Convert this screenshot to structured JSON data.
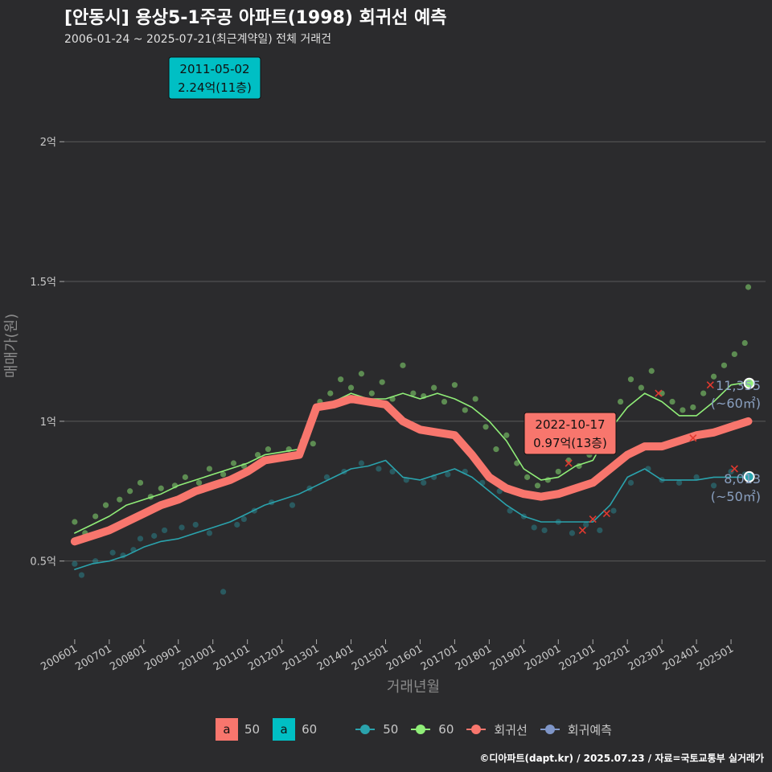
{
  "header": {
    "title": "[안동시] 용상5-1주공 아파트(1998) 회귀선 예측",
    "subtitle": "2006-01-24 ~ 2025-07-21(최근계약일) 전체 거래건"
  },
  "footer": "©디아파트(dapt.kr) / 2025.07.23 / 자료=국토교통부 실거래가",
  "colors": {
    "background": "#2b2b2d",
    "s50": "#2aa3ad",
    "s60": "#90ee78",
    "regression": "#f8766d",
    "prediction": "#7f96c8",
    "label_50": "#f8766d",
    "label_60": "#00bfc4",
    "grid": "#5a5a5a"
  },
  "chart_data": {
    "type": "scatter",
    "xlabel": "거래년월",
    "ylabel": "매매가(원)",
    "x_ticks": [
      "200601",
      "200701",
      "200801",
      "200901",
      "201001",
      "201101",
      "201201",
      "201301",
      "201401",
      "201501",
      "201601",
      "201701",
      "201801",
      "201901",
      "202001",
      "202101",
      "202201",
      "202301",
      "202401",
      "202501"
    ],
    "y_ticks": [
      {
        "value": 0.5,
        "label": "0.5억"
      },
      {
        "value": 1.0,
        "label": "1억"
      },
      {
        "value": 1.5,
        "label": "1.5억"
      },
      {
        "value": 2.0,
        "label": "2억"
      }
    ],
    "xlim": [
      2005.7,
      2026.0
    ],
    "ylim": [
      0.22,
      2.32
    ],
    "series": [
      {
        "name": "50",
        "x": [
          2006.0,
          2006.5,
          2007.0,
          2007.5,
          2008.0,
          2008.5,
          2009.0,
          2009.5,
          2010.0,
          2010.5,
          2011.0,
          2011.5,
          2012.0,
          2012.5,
          2013.0,
          2013.5,
          2014.0,
          2014.5,
          2015.0,
          2015.5,
          2016.0,
          2016.5,
          2017.0,
          2017.5,
          2018.0,
          2018.5,
          2019.0,
          2019.5,
          2020.0,
          2020.5,
          2021.0,
          2021.5,
          2022.0,
          2022.5,
          2023.0,
          2023.5,
          2024.0,
          2024.5,
          2025.0,
          2025.5
        ],
        "y": [
          0.47,
          0.49,
          0.5,
          0.52,
          0.55,
          0.57,
          0.58,
          0.6,
          0.62,
          0.64,
          0.67,
          0.7,
          0.72,
          0.74,
          0.77,
          0.8,
          0.83,
          0.84,
          0.86,
          0.8,
          0.79,
          0.81,
          0.83,
          0.8,
          0.75,
          0.7,
          0.66,
          0.64,
          0.64,
          0.64,
          0.64,
          0.7,
          0.8,
          0.83,
          0.79,
          0.79,
          0.79,
          0.8,
          0.8,
          0.8
        ]
      },
      {
        "name": "60",
        "x": [
          2006.0,
          2006.5,
          2007.0,
          2007.5,
          2008.0,
          2008.5,
          2009.0,
          2009.5,
          2010.0,
          2010.5,
          2011.0,
          2011.5,
          2012.0,
          2012.5,
          2013.0,
          2013.5,
          2014.0,
          2014.5,
          2015.0,
          2015.5,
          2016.0,
          2016.5,
          2017.0,
          2017.5,
          2018.0,
          2018.5,
          2019.0,
          2019.5,
          2020.0,
          2020.5,
          2021.0,
          2021.5,
          2022.0,
          2022.5,
          2023.0,
          2023.5,
          2024.0,
          2024.5,
          2025.0,
          2025.5
        ],
        "y": [
          0.6,
          0.63,
          0.66,
          0.7,
          0.72,
          0.74,
          0.77,
          0.79,
          0.81,
          0.83,
          0.85,
          0.88,
          0.89,
          0.9,
          1.06,
          1.07,
          1.1,
          1.08,
          1.08,
          1.1,
          1.08,
          1.1,
          1.08,
          1.05,
          1.0,
          0.93,
          0.83,
          0.79,
          0.8,
          0.84,
          0.86,
          0.97,
          1.05,
          1.1,
          1.07,
          1.02,
          1.02,
          1.07,
          1.13,
          1.14
        ]
      },
      {
        "name": "회귀선",
        "x": [
          2006.0,
          2006.5,
          2007.0,
          2007.5,
          2008.0,
          2008.5,
          2009.0,
          2009.5,
          2010.0,
          2010.5,
          2011.0,
          2011.5,
          2012.0,
          2012.5,
          2013.0,
          2013.5,
          2014.0,
          2014.5,
          2015.0,
          2015.5,
          2016.0,
          2016.5,
          2017.0,
          2017.5,
          2018.0,
          2018.5,
          2019.0,
          2019.5,
          2020.0,
          2020.5,
          2021.0,
          2021.5,
          2022.0,
          2022.5,
          2023.0,
          2023.5,
          2024.0,
          2024.5,
          2025.0,
          2025.5
        ],
        "y": [
          0.57,
          0.59,
          0.61,
          0.64,
          0.67,
          0.7,
          0.72,
          0.75,
          0.77,
          0.79,
          0.82,
          0.86,
          0.87,
          0.88,
          1.05,
          1.06,
          1.08,
          1.07,
          1.06,
          1.0,
          0.97,
          0.96,
          0.95,
          0.88,
          0.8,
          0.76,
          0.74,
          0.73,
          0.74,
          0.76,
          0.78,
          0.83,
          0.88,
          0.91,
          0.91,
          0.93,
          0.95,
          0.96,
          0.98,
          1.0
        ]
      }
    ],
    "scatter_50": {
      "x": [
        2006.0,
        2006.2,
        2006.6,
        2007.1,
        2007.4,
        2007.7,
        2007.9,
        2008.3,
        2008.6,
        2009.1,
        2009.5,
        2009.9,
        2010.3,
        2010.7,
        2010.9,
        2011.2,
        2011.7,
        2012.3,
        2012.8,
        2013.3,
        2013.8,
        2014.3,
        2014.8,
        2015.2,
        2015.6,
        2016.1,
        2016.4,
        2016.8,
        2017.3,
        2017.8,
        2018.3,
        2018.6,
        2019.0,
        2019.3,
        2019.6,
        2020.0,
        2020.4,
        2020.8,
        2021.2,
        2021.6,
        2022.1,
        2022.6,
        2023.0,
        2023.5,
        2024.0,
        2024.5,
        2025.0,
        2025.4
      ],
      "y": [
        0.49,
        0.45,
        0.5,
        0.53,
        0.52,
        0.54,
        0.58,
        0.59,
        0.61,
        0.62,
        0.63,
        0.6,
        0.39,
        0.63,
        0.65,
        0.68,
        0.71,
        0.7,
        0.76,
        0.8,
        0.82,
        0.85,
        0.83,
        0.82,
        0.79,
        0.78,
        0.8,
        0.81,
        0.82,
        0.78,
        0.75,
        0.68,
        0.66,
        0.62,
        0.61,
        0.64,
        0.6,
        0.63,
        0.61,
        0.68,
        0.78,
        0.83,
        0.79,
        0.78,
        0.8,
        0.77,
        0.82,
        0.81
      ]
    },
    "scatter_60": {
      "x": [
        2006.0,
        2006.3,
        2006.6,
        2006.9,
        2007.3,
        2007.6,
        2007.9,
        2008.2,
        2008.5,
        2008.9,
        2009.2,
        2009.6,
        2009.9,
        2010.3,
        2010.6,
        2010.9,
        2011.0,
        2011.3,
        2011.6,
        2011.9,
        2012.2,
        2012.6,
        2012.9,
        2013.1,
        2013.4,
        2013.7,
        2014.0,
        2014.3,
        2014.6,
        2014.9,
        2015.2,
        2015.5,
        2015.8,
        2016.1,
        2016.4,
        2016.7,
        2017.0,
        2017.3,
        2017.6,
        2017.9,
        2018.2,
        2018.5,
        2018.8,
        2019.1,
        2019.4,
        2019.7,
        2020.0,
        2020.3,
        2020.6,
        2020.9,
        2021.2,
        2021.5,
        2021.8,
        2022.1,
        2022.4,
        2022.7,
        2023.0,
        2023.3,
        2023.6,
        2023.9,
        2024.2,
        2024.5,
        2024.8,
        2025.1,
        2025.4,
        2025.5
      ],
      "y": [
        0.64,
        0.6,
        0.66,
        0.7,
        0.72,
        0.75,
        0.78,
        0.73,
        0.76,
        0.77,
        0.8,
        0.78,
        0.83,
        0.81,
        0.85,
        0.84,
        2.24,
        0.88,
        0.9,
        0.87,
        0.9,
        0.93,
        0.92,
        1.07,
        1.1,
        1.15,
        1.12,
        1.17,
        1.1,
        1.14,
        1.08,
        1.2,
        1.1,
        1.09,
        1.12,
        1.07,
        1.13,
        1.04,
        1.08,
        0.98,
        0.9,
        0.95,
        0.85,
        0.8,
        0.77,
        0.79,
        0.82,
        0.86,
        0.84,
        0.88,
        0.92,
        0.99,
        1.07,
        1.15,
        1.12,
        1.18,
        1.1,
        1.07,
        1.04,
        1.05,
        1.1,
        1.16,
        1.2,
        1.24,
        1.28,
        1.48
      ]
    },
    "markers": [
      {
        "x": 2011.0,
        "y": 2.24,
        "label_date": "2011-05-02",
        "label_price": "2.24억(11층)",
        "fill": "#00bfc4"
      },
      {
        "x": 2022.7,
        "y": 0.97,
        "label_date": "2022-10-17",
        "label_price": "0.97억(13층)",
        "fill": "#f8766d"
      }
    ],
    "end_labels": [
      {
        "x": 2025.55,
        "y": 1.1355,
        "value": "11,355",
        "size": "(~60㎡)"
      },
      {
        "x": 2025.55,
        "y": 0.8013,
        "value": "8,013",
        "size": "(~50㎡)"
      }
    ],
    "x_markers": [
      [
        2020.3,
        0.85
      ],
      [
        2020.7,
        0.61
      ],
      [
        2021.0,
        0.65
      ],
      [
        2021.4,
        0.67
      ],
      [
        2022.9,
        1.1
      ],
      [
        2023.9,
        0.94
      ],
      [
        2024.4,
        1.13
      ],
      [
        2025.1,
        0.83
      ]
    ]
  },
  "legend": {
    "fill_items": [
      {
        "key": "a",
        "label": "50"
      },
      {
        "key": "a",
        "label": "60"
      }
    ],
    "line_items": [
      {
        "label": "50"
      },
      {
        "label": "60"
      },
      {
        "label": "회귀선"
      },
      {
        "label": "회귀예측"
      }
    ]
  }
}
